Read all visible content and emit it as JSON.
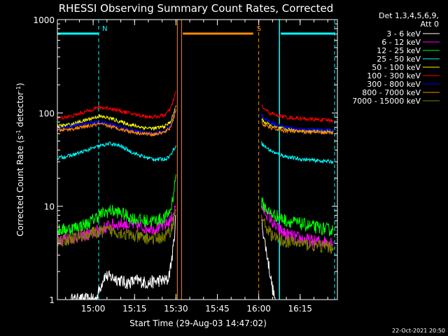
{
  "chart_data": {
    "type": "line",
    "title": "RHESSI Observing Summary Count Rates, Corrected",
    "xlabel": "Start Time (29-Aug-03 14:47:02)",
    "ylabel": "Corrected Count Rate (s",
    "ylabel_sup1": "-1",
    "ylabel_mid": " detector",
    "ylabel_sup2": "-1",
    "ylabel_end": ")",
    "y_scale": "log",
    "ylim": [
      1,
      1000
    ],
    "xlim": [
      "14:47:02",
      "16:28:30"
    ],
    "x_ticks": [
      "15:00",
      "15:15",
      "15:30",
      "15:45",
      "16:00",
      "16:15"
    ],
    "y_ticks": [
      "1",
      "10",
      "100",
      "1000"
    ],
    "legend_header": [
      "Det 1,3,4,5,6,9,",
      "Att 0"
    ],
    "timestamp": "22-Oct-2021 20:50",
    "annotations": [
      {
        "label": "N",
        "color": "#00ffff",
        "time_range": [
          "14:47:02",
          "15:02:00"
        ]
      },
      {
        "label": "S",
        "color": "#ff8800",
        "time_range": [
          "15:32:30",
          "15:58:00"
        ]
      }
    ],
    "night_intervals": [
      [
        "14:47:02",
        "15:02:00"
      ],
      [
        "16:07:30",
        "16:27:30"
      ]
    ],
    "saa_interval": [
      "15:30:30",
      "16:00:00"
    ],
    "gap": [
      "15:30:00",
      "16:01:30"
    ],
    "series": [
      {
        "name": "3 - 6 keV",
        "color": "#ffffff",
        "segments": [
          {
            "x": [
              "14:52",
              "14:55",
              "14:58",
              "15:01",
              "15:04",
              "15:08",
              "15:12",
              "15:16",
              "15:20",
              "15:24",
              "15:27",
              "15:28",
              "15:29",
              "15:30"
            ],
            "y": [
              1,
              1,
              1,
              1,
              1.8,
              1.7,
              1.5,
              1.6,
              1.5,
              1.6,
              1.6,
              2.2,
              3.5,
              8
            ]
          },
          {
            "x": [
              "16:01",
              "16:02",
              "16:03",
              "16:04",
              "16:05",
              "16:06"
            ],
            "y": [
              7,
              4.5,
              3,
              2,
              1.3,
              1
            ]
          }
        ]
      },
      {
        "name": "6 - 12 keV",
        "color": "#ff00ff",
        "segments": [
          {
            "x": [
              "14:47",
              "14:52",
              "14:58",
              "15:02",
              "15:06",
              "15:10",
              "15:14",
              "15:18",
              "15:22",
              "15:26",
              "15:28",
              "15:29",
              "15:30"
            ],
            "y": [
              4.5,
              4.6,
              5,
              5.5,
              6.2,
              6.5,
              6.3,
              6,
              5.8,
              6.2,
              7,
              8.5,
              10
            ]
          },
          {
            "x": [
              "16:01",
              "16:02",
              "16:04",
              "16:06",
              "16:10",
              "16:15",
              "16:20",
              "16:27"
            ],
            "y": [
              10,
              9,
              7.5,
              6,
              5,
              4.5,
              4.2,
              4.2
            ]
          }
        ]
      },
      {
        "name": "12 - 25 keV",
        "color": "#00ff00",
        "segments": [
          {
            "x": [
              "14:47",
              "14:52",
              "14:58",
              "15:02",
              "15:06",
              "15:10",
              "15:14",
              "15:18",
              "15:22",
              "15:26",
              "15:28",
              "15:29",
              "15:30"
            ],
            "y": [
              5.5,
              5.8,
              6.5,
              8,
              9,
              8.5,
              7.5,
              7,
              7,
              7.5,
              9,
              13,
              22
            ]
          },
          {
            "x": [
              "16:01",
              "16:02",
              "16:04",
              "16:06",
              "16:10",
              "16:15",
              "16:20",
              "16:27"
            ],
            "y": [
              11,
              10,
              8.5,
              8,
              7,
              6.5,
              6,
              5.5
            ]
          }
        ]
      },
      {
        "name": "25 - 50 keV",
        "color": "#00ffff",
        "segments": [
          {
            "x": [
              "14:47",
              "14:52",
              "14:58",
              "15:02",
              "15:06",
              "15:10",
              "15:14",
              "15:18",
              "15:22",
              "15:26",
              "15:28",
              "15:29",
              "15:30"
            ],
            "y": [
              33,
              35,
              40,
              44,
              47,
              44,
              38,
              34,
              32,
              32,
              35,
              40,
              45
            ]
          },
          {
            "x": [
              "16:01",
              "16:02",
              "16:04",
              "16:06",
              "16:10",
              "16:15",
              "16:20",
              "16:27"
            ],
            "y": [
              48,
              44,
              40,
              37,
              34,
              32,
              31,
              30
            ]
          }
        ]
      },
      {
        "name": "50 - 100 keV",
        "color": "#ffff00",
        "segments": [
          {
            "x": [
              "14:47",
              "14:52",
              "14:58",
              "15:02",
              "15:06",
              "15:10",
              "15:14",
              "15:18",
              "15:22",
              "15:26",
              "15:28",
              "15:29",
              "15:30"
            ],
            "y": [
              72,
              75,
              85,
              92,
              88,
              80,
              74,
              70,
              68,
              72,
              80,
              95,
              120
            ]
          },
          {
            "x": [
              "16:01",
              "16:02",
              "16:04",
              "16:06",
              "16:10",
              "16:15",
              "16:20",
              "16:27"
            ],
            "y": [
              85,
              80,
              74,
              70,
              67,
              65,
              64,
              63
            ]
          }
        ]
      },
      {
        "name": "100 - 300 keV",
        "color": "#ff0000",
        "segments": [
          {
            "x": [
              "14:47",
              "14:52",
              "14:58",
              "15:02",
              "15:06",
              "15:10",
              "15:14",
              "15:18",
              "15:22",
              "15:26",
              "15:28",
              "15:29",
              "15:30"
            ],
            "y": [
              88,
              92,
              105,
              115,
              112,
              105,
              98,
              93,
              90,
              95,
              110,
              135,
              170
            ]
          },
          {
            "x": [
              "16:01",
              "16:02",
              "16:04",
              "16:06",
              "16:10",
              "16:15",
              "16:20",
              "16:27"
            ],
            "y": [
              120,
              110,
              100,
              95,
              90,
              87,
              85,
              83
            ]
          }
        ]
      },
      {
        "name": "300 - 800 keV",
        "color": "#0000ff",
        "segments": [
          {
            "x": [
              "14:47",
              "14:52",
              "14:58",
              "15:02",
              "15:06",
              "15:10",
              "15:14",
              "15:18",
              "15:22",
              "15:26",
              "15:28",
              "15:29",
              "15:30"
            ],
            "y": [
              68,
              72,
              78,
              80,
              76,
              70,
              65,
              62,
              61,
              64,
              72,
              88,
              115
            ]
          },
          {
            "x": [
              "16:01",
              "16:02",
              "16:04",
              "16:06",
              "16:10",
              "16:15",
              "16:20",
              "16:27"
            ],
            "y": [
              95,
              88,
              80,
              75,
              70,
              67,
              66,
              65
            ]
          }
        ]
      },
      {
        "name": "800 - 7000 keV",
        "color": "#ff8800",
        "segments": [
          {
            "x": [
              "14:47",
              "14:52",
              "14:58",
              "15:02",
              "15:06",
              "15:10",
              "15:14",
              "15:18",
              "15:22",
              "15:26",
              "15:28",
              "15:29",
              "15:30"
            ],
            "y": [
              65,
              67,
              72,
              76,
              72,
              67,
              63,
              60,
              59,
              62,
              70,
              85,
              110
            ]
          },
          {
            "x": [
              "16:01",
              "16:02",
              "16:04",
              "16:06",
              "16:10",
              "16:15",
              "16:20",
              "16:27"
            ],
            "y": [
              78,
              74,
              70,
              67,
              64,
              63,
              62,
              61
            ]
          }
        ]
      },
      {
        "name": "7000 - 15000 keV",
        "color": "#808000",
        "segments": [
          {
            "x": [
              "14:47",
              "14:52",
              "14:58",
              "15:02",
              "15:06",
              "15:10",
              "15:14",
              "15:18",
              "15:22",
              "15:26",
              "15:28",
              "15:29",
              "15:30"
            ],
            "y": [
              4.2,
              4.5,
              5,
              5.3,
              5.5,
              5.2,
              4.8,
              4.6,
              4.5,
              4.7,
              5.5,
              7,
              9
            ]
          },
          {
            "x": [
              "16:01",
              "16:02",
              "16:04",
              "16:06",
              "16:10",
              "16:15",
              "16:20",
              "16:27"
            ],
            "y": [
              8,
              6.5,
              5.2,
              4.5,
              4.2,
              4,
              3.8,
              3.6
            ]
          }
        ]
      }
    ]
  }
}
